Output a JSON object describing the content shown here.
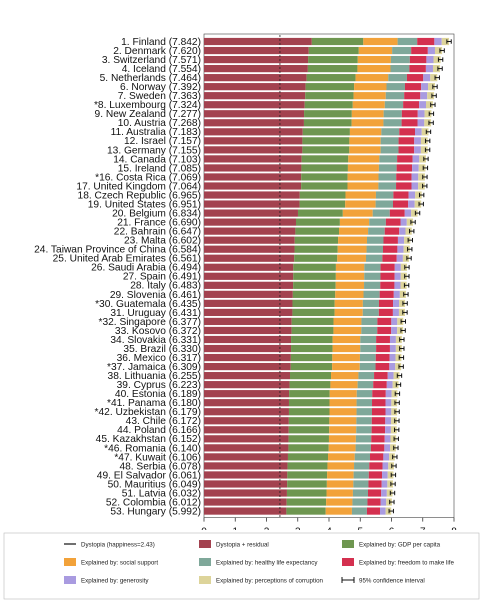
{
  "chart_data": {
    "type": "bar",
    "orientation": "horizontal",
    "stacked": true,
    "xlim": [
      0,
      8
    ],
    "xticks": [
      "0",
      "1",
      "2",
      "3",
      "4",
      "5",
      "6",
      "7",
      "8"
    ],
    "dystopia_line": 2.43,
    "rows": [
      {
        "label": "1. Finland (7.842)",
        "total": 7.842
      },
      {
        "label": "2. Denmark (7.620)",
        "total": 7.62
      },
      {
        "label": "3. Switzerland (7.571)",
        "total": 7.571
      },
      {
        "label": "4. Iceland (7.554)",
        "total": 7.554
      },
      {
        "label": "5. Netherlands (7.464)",
        "total": 7.464
      },
      {
        "label": "6. Norway (7.392)",
        "total": 7.392
      },
      {
        "label": "7. Sweden (7.363)",
        "total": 7.363
      },
      {
        "label": "*8. Luxembourg (7.324)",
        "total": 7.324
      },
      {
        "label": "9. New Zealand (7.277)",
        "total": 7.277
      },
      {
        "label": "10. Austria (7.268)",
        "total": 7.268
      },
      {
        "label": "11. Australia (7.183)",
        "total": 7.183
      },
      {
        "label": "12. Israel (7.157)",
        "total": 7.157
      },
      {
        "label": "13. Germany (7.155)",
        "total": 7.155
      },
      {
        "label": "14. Canada (7.103)",
        "total": 7.103
      },
      {
        "label": "15. Ireland (7.085)",
        "total": 7.085
      },
      {
        "label": "*16. Costa Rica (7.069)",
        "total": 7.069
      },
      {
        "label": "17. United Kingdom (7.064)",
        "total": 7.064
      },
      {
        "label": "18. Czech Republic (6.965)",
        "total": 6.965
      },
      {
        "label": "19. United States (6.951)",
        "total": 6.951
      },
      {
        "label": "20. Belgium (6.834)",
        "total": 6.834
      },
      {
        "label": "21. France (6.690)",
        "total": 6.69
      },
      {
        "label": "22. Bahrain (6.647)",
        "total": 6.647
      },
      {
        "label": "23. Malta (6.602)",
        "total": 6.602
      },
      {
        "label": "24. Taiwan Province of China (6.584)",
        "total": 6.584
      },
      {
        "label": "25. United Arab Emirates (6.561)",
        "total": 6.561
      },
      {
        "label": "26. Saudi Arabia (6.494)",
        "total": 6.494
      },
      {
        "label": "27. Spain (6.491)",
        "total": 6.491
      },
      {
        "label": "28. Italy (6.483)",
        "total": 6.483
      },
      {
        "label": "29. Slovenia (6.461)",
        "total": 6.461
      },
      {
        "label": "*30. Guatemala (6.435)",
        "total": 6.435
      },
      {
        "label": "31. Uruguay (6.431)",
        "total": 6.431
      },
      {
        "label": "*32. Singapore (6.377)",
        "total": 6.377
      },
      {
        "label": "33. Kosovo (6.372)",
        "total": 6.372
      },
      {
        "label": "34. Slovakia (6.331)",
        "total": 6.331
      },
      {
        "label": "35. Brazil (6.330)",
        "total": 6.33
      },
      {
        "label": "36. Mexico (6.317)",
        "total": 6.317
      },
      {
        "label": "*37. Jamaica (6.309)",
        "total": 6.309
      },
      {
        "label": "38. Lithuania (6.255)",
        "total": 6.255
      },
      {
        "label": "39. Cyprus (6.223)",
        "total": 6.223
      },
      {
        "label": "40. Estonia (6.189)",
        "total": 6.189
      },
      {
        "label": "*41. Panama (6.180)",
        "total": 6.18
      },
      {
        "label": "*42. Uzbekistan (6.179)",
        "total": 6.179
      },
      {
        "label": "43. Chile (6.172)",
        "total": 6.172
      },
      {
        "label": "44. Poland (6.166)",
        "total": 6.166
      },
      {
        "label": "45. Kazakhstan (6.152)",
        "total": 6.152
      },
      {
        "label": "*46. Romania (6.140)",
        "total": 6.14
      },
      {
        "label": "*47. Kuwait (6.106)",
        "total": 6.106
      },
      {
        "label": "48. Serbia (6.078)",
        "total": 6.078
      },
      {
        "label": "49. El Salvador (6.061)",
        "total": 6.061
      },
      {
        "label": "50. Mauritius (6.049)",
        "total": 6.049
      },
      {
        "label": "51. Latvia (6.032)",
        "total": 6.032
      },
      {
        "label": "52. Colombia (6.012)",
        "total": 6.012
      },
      {
        "label": "53. Hungary (5.992)",
        "total": 5.992
      }
    ],
    "series": [
      {
        "name": "Dystopia + residual",
        "color": "#a3424f"
      },
      {
        "name": "Explained by: GDP per capita",
        "color": "#6e9650"
      },
      {
        "name": "Explained by: social support",
        "color": "#f2a23a"
      },
      {
        "name": "Explained by: healthy life expectancy",
        "color": "#7fa89a"
      },
      {
        "name": "Explained by: freedom to make life choices",
        "color": "#d4304f"
      },
      {
        "name": "Explained by: generosity",
        "color": "#a99be0"
      },
      {
        "name": "Explained by: perceptions of corruption",
        "color": "#ddd49a"
      }
    ],
    "legend": {
      "position": "bottom",
      "items": [
        {
          "label": "Dystopia (happiness=2.43)",
          "kind": "line"
        },
        {
          "label": "Dystopia + residual",
          "kind": "swatch",
          "color": "#a3424f"
        },
        {
          "label": "Explained by: GDP per capita",
          "kind": "swatch",
          "color": "#6e9650"
        },
        {
          "label": "Explained by: social support",
          "kind": "swatch",
          "color": "#f2a23a"
        },
        {
          "label": "Explained by: healthy life expectancy",
          "kind": "swatch",
          "color": "#7fa89a"
        },
        {
          "label": "Explained by: freedom to make life",
          "kind": "swatch",
          "color": "#d4304f"
        },
        {
          "label": "Explained by: generosity",
          "kind": "swatch",
          "color": "#a99be0"
        },
        {
          "label": "Explained by: perceptions of corruption",
          "kind": "swatch",
          "color": "#ddd49a"
        },
        {
          "label": "95% confidence interval",
          "kind": "ci"
        }
      ]
    }
  }
}
